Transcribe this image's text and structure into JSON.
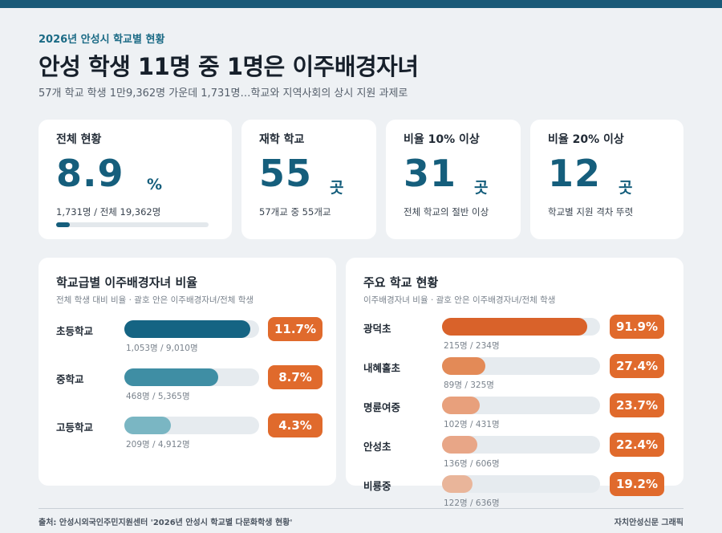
{
  "header": {
    "kicker": "2026년 안성시 학교별 현황",
    "title": "안성 학생 11명 중 1명은 이주배경자녀",
    "subtitle": "57개 학교 학생 1만9,362명 가운데 1,731명…학교와 지역사회의 상시 지원 과제로"
  },
  "stats": [
    {
      "label": "전체 현황",
      "value": "8.9",
      "unit": "%",
      "note": "1,731명 / 전체 19,362명",
      "progress": 0.089
    },
    {
      "label": "재학 학교",
      "value": "55",
      "unit": "곳",
      "note": "57개교 중 55개교"
    },
    {
      "label": "비율 10% 이상",
      "value": "31",
      "unit": "곳",
      "note": "전체 학교의 절반 이상"
    },
    {
      "label": "비율 20% 이상",
      "value": "12",
      "unit": "곳",
      "note": "학교별 지원 격차 뚜렷"
    }
  ],
  "colors": {
    "accent": "#155e7c",
    "badge": "#e06a2c",
    "level_fills": [
      "#156483",
      "#3f8ea4",
      "#7ab6c3"
    ],
    "school_fills": [
      "#d9622a",
      "#e38a57",
      "#e8a07c",
      "#e8a687",
      "#e9b59a"
    ]
  },
  "chart_data": [
    {
      "type": "bar",
      "title": "학교급별 이주배경자녀 비율",
      "subtitle": "전체 학생 대비 비율 · 괄호 안은 이주배경자녀/전체 학생",
      "categories": [
        "초등학교",
        "중학교",
        "고등학교"
      ],
      "values": [
        11.7,
        8.7,
        4.3
      ],
      "value_labels": [
        "11.7%",
        "8.7%",
        "4.3%"
      ],
      "details": [
        "1,053명 / 9,010명",
        "468명 / 5,365명",
        "209명 / 4,912명"
      ],
      "scale_max": 12.5
    },
    {
      "type": "bar",
      "title": "주요 학교 현황",
      "subtitle": "이주배경자녀 비율 · 괄호 안은 이주배경자녀/전체 학생",
      "categories": [
        "광덕초",
        "내혜홀초",
        "명륜여중",
        "안성초",
        "비룡중"
      ],
      "values": [
        91.9,
        27.4,
        23.7,
        22.4,
        19.2
      ],
      "value_labels": [
        "91.9%",
        "27.4%",
        "23.7%",
        "22.4%",
        "19.2%"
      ],
      "details": [
        "215명 / 234명",
        "89명 / 325명",
        "102명 / 431명",
        "136명 / 606명",
        "122명 / 636명"
      ],
      "scale_max": 100
    }
  ],
  "footer": {
    "source": "출처: 안성시외국인주민지원센터 '2026년 안성시 학교별 다문화학생 현황'",
    "credit": "자치안성신문 그래픽"
  }
}
